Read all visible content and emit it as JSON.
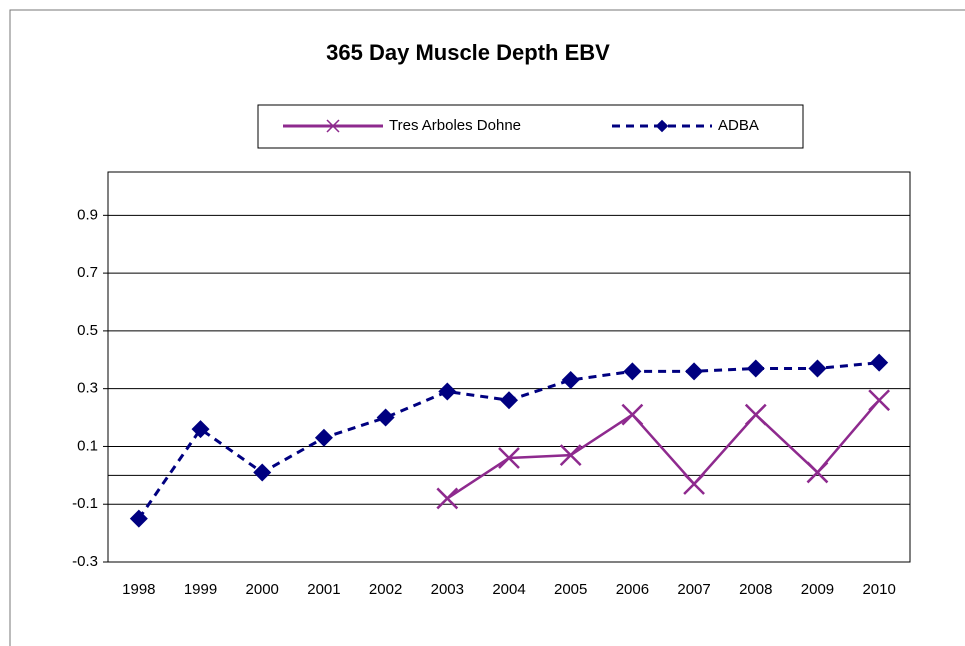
{
  "chart_data": {
    "type": "line",
    "title": "365 Day Muscle Depth EBV",
    "categories": [
      "1998",
      "1999",
      "2000",
      "2001",
      "2002",
      "2003",
      "2004",
      "2005",
      "2006",
      "2007",
      "2008",
      "2009",
      "2010"
    ],
    "series": [
      {
        "name": "Tres Arboles Dohne",
        "color": "#8e2a8e",
        "marker": "x",
        "dash": false,
        "values": [
          null,
          null,
          null,
          null,
          null,
          -0.08,
          0.06,
          0.07,
          0.21,
          -0.03,
          0.21,
          0.01,
          0.26
        ]
      },
      {
        "name": "ADBA",
        "color": "#000080",
        "marker": "diamond",
        "dash": true,
        "values": [
          -0.15,
          0.16,
          0.01,
          0.13,
          0.2,
          0.29,
          0.26,
          0.33,
          0.36,
          0.36,
          0.37,
          0.37,
          0.39
        ]
      }
    ],
    "ylim": [
      -0.3,
      1.05
    ],
    "yticks": [
      -0.3,
      -0.1,
      0.1,
      0.3,
      0.5,
      0.7,
      0.9
    ],
    "grid": true
  }
}
